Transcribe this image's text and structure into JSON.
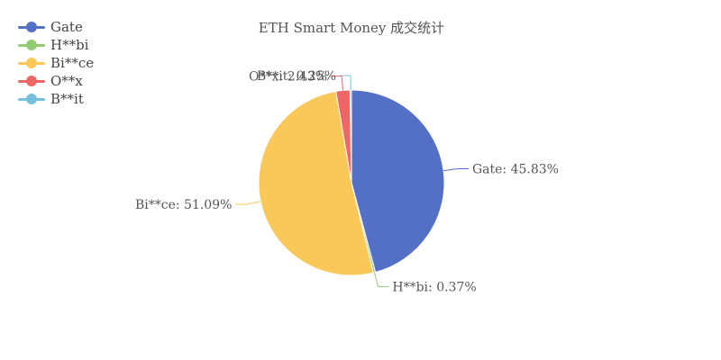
{
  "chart_data": {
    "type": "pie",
    "title": "ETH Smart Money 成交统计",
    "legend_position": "top-left",
    "slices": [
      {
        "name": "Gate",
        "value": 45.83,
        "label": "Gate: 45.83%",
        "color": "#5470c6"
      },
      {
        "name": "H**bi",
        "value": 0.37,
        "label": "H**bi: 0.37%",
        "color": "#91cc75"
      },
      {
        "name": "Bi**ce",
        "value": 51.09,
        "label": "Bi**ce: 51.09%",
        "color": "#fac858"
      },
      {
        "name": "O**x",
        "value": 2.43,
        "label": "O**x: 2.43%",
        "color": "#ee6666"
      },
      {
        "name": "B**it",
        "value": 0.25,
        "label": "B**it: 0.25%",
        "color": "#73c0de"
      }
    ]
  }
}
